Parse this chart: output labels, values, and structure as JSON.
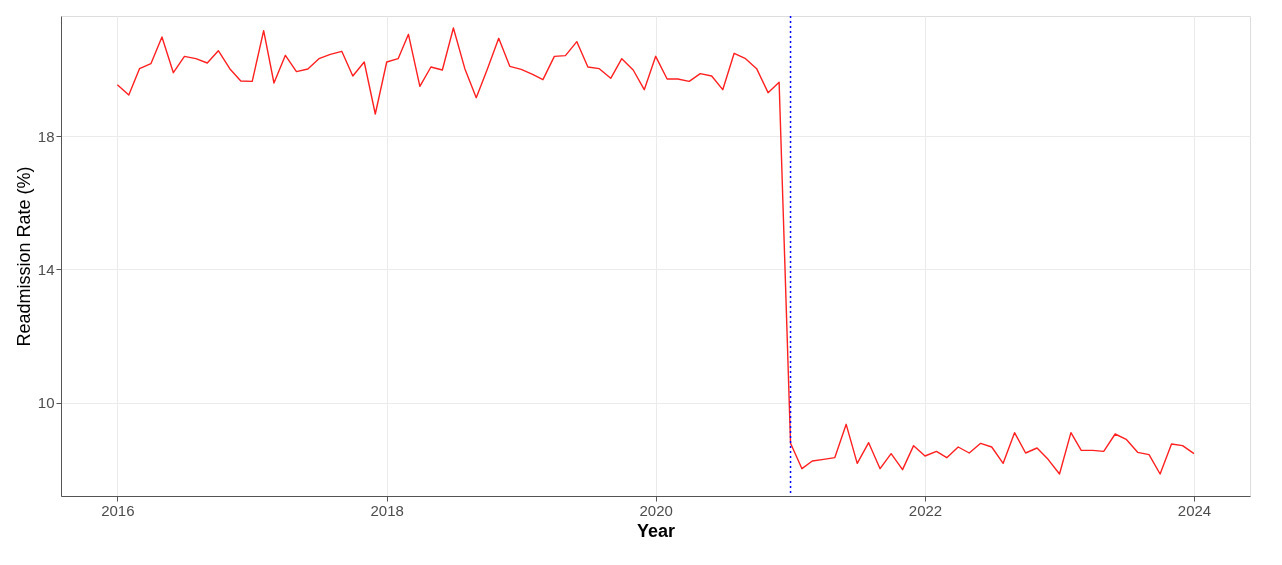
{
  "chart_data": {
    "type": "line",
    "xlabel": "Year",
    "ylabel": "Readmission Rate (%)",
    "x": [
      "2016-01",
      "2016-02",
      "2016-03",
      "2016-04",
      "2016-05",
      "2016-06",
      "2016-07",
      "2016-08",
      "2016-09",
      "2016-10",
      "2016-11",
      "2016-12",
      "2017-01",
      "2017-02",
      "2017-03",
      "2017-04",
      "2017-05",
      "2017-06",
      "2017-07",
      "2017-08",
      "2017-09",
      "2017-10",
      "2017-11",
      "2017-12",
      "2018-01",
      "2018-02",
      "2018-03",
      "2018-04",
      "2018-05",
      "2018-06",
      "2018-07",
      "2018-08",
      "2018-09",
      "2018-10",
      "2018-11",
      "2018-12",
      "2019-01",
      "2019-02",
      "2019-03",
      "2019-04",
      "2019-05",
      "2019-06",
      "2019-07",
      "2019-08",
      "2019-09",
      "2019-10",
      "2019-11",
      "2019-12",
      "2020-01",
      "2020-02",
      "2020-03",
      "2020-04",
      "2020-05",
      "2020-06",
      "2020-07",
      "2020-08",
      "2020-09",
      "2020-10",
      "2020-11",
      "2020-12",
      "2021-01",
      "2021-02",
      "2021-03",
      "2021-04",
      "2021-05",
      "2021-06",
      "2021-07",
      "2021-08",
      "2021-09",
      "2021-10",
      "2021-11",
      "2021-12",
      "2022-01",
      "2022-02",
      "2022-03",
      "2022-04",
      "2022-05",
      "2022-06",
      "2022-07",
      "2022-08",
      "2022-09",
      "2022-10",
      "2022-11",
      "2022-12",
      "2023-01",
      "2023-02",
      "2023-03",
      "2023-04",
      "2023-05",
      "2023-06",
      "2023-07",
      "2023-08",
      "2023-09",
      "2023-10",
      "2023-11",
      "2023-12",
      "2024-01"
    ],
    "series": [
      {
        "color": "#ff2020",
        "values": [
          19.54,
          19.23,
          20.02,
          20.17,
          20.97,
          19.9,
          20.39,
          20.32,
          20.19,
          20.56,
          20.02,
          19.65,
          19.64,
          21.16,
          19.59,
          20.42,
          19.93,
          20.01,
          20.32,
          20.45,
          20.54,
          19.8,
          20.22,
          18.66,
          20.22,
          20.32,
          21.05,
          19.49,
          20.07,
          19.98,
          21.24,
          20.02,
          19.15,
          20.0,
          20.93,
          20.09,
          20.0,
          19.85,
          19.69,
          20.39,
          20.41,
          20.83,
          20.07,
          20.02,
          19.73,
          20.32,
          19.98,
          19.39,
          20.39,
          19.71,
          19.71,
          19.64,
          19.87,
          19.8,
          19.39,
          20.48,
          20.32,
          20.02,
          19.3,
          19.61,
          8.78,
          8.02,
          8.25,
          8.3,
          8.35,
          9.35,
          8.18,
          8.8,
          8.02,
          8.47,
          7.99,
          8.71,
          8.4,
          8.54,
          8.35,
          8.67,
          8.49,
          8.78,
          8.67,
          8.18,
          9.1,
          8.49,
          8.64,
          8.3,
          7.86,
          9.1,
          8.57,
          8.57,
          8.54,
          9.06,
          8.9,
          8.51,
          8.44,
          7.86,
          8.76,
          8.71,
          8.47
        ]
      }
    ],
    "xlim": [
      "2015-08",
      "2024-06"
    ],
    "xticks": [
      "2016",
      "2018",
      "2020",
      "2022",
      "2024"
    ],
    "ylim": [
      7.2,
      21.6
    ],
    "yticks": [
      10,
      14,
      18
    ],
    "ref_lines": [
      {
        "axis": "x",
        "value": "2021-01",
        "color": "#0000ff",
        "line_style": "dotted"
      }
    ],
    "grid": true,
    "legend": false,
    "marker": "none",
    "line_style": "solid"
  }
}
